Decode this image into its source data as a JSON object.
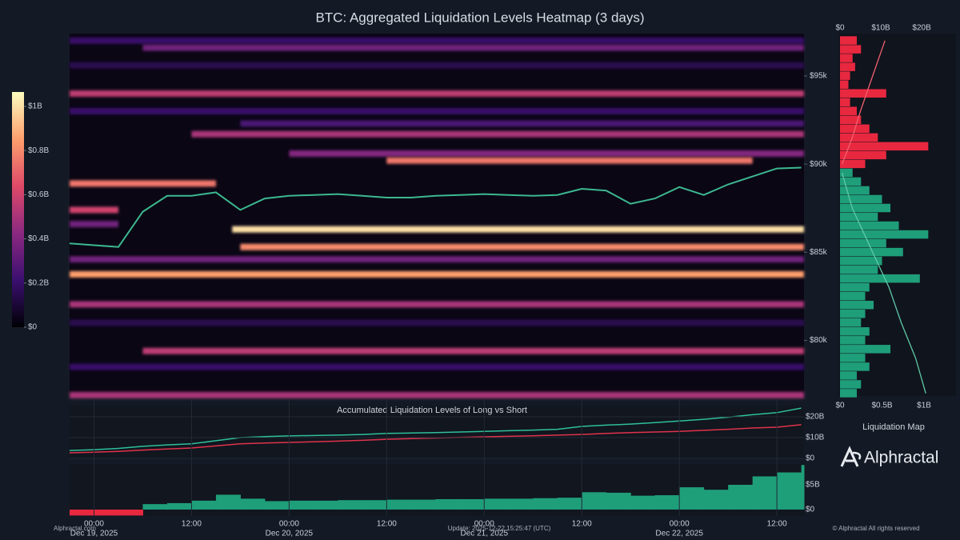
{
  "chart_data": [
    {
      "type": "heatmap",
      "title": "BTC: Aggregated Liquidation Levels Heatmap (3 days)",
      "x": [
        "2025-12-18T21:00",
        "2025-12-19T00:00",
        "2025-12-19T03:00",
        "2025-12-19T06:00",
        "2025-12-19T09:00",
        "2025-12-19T12:00",
        "2025-12-19T15:00",
        "2025-12-19T18:00",
        "2025-12-19T21:00",
        "2025-12-20T00:00",
        "2025-12-20T03:00",
        "2025-12-20T06:00",
        "2025-12-20T09:00",
        "2025-12-20T12:00",
        "2025-12-20T15:00",
        "2025-12-20T18:00",
        "2025-12-20T21:00",
        "2025-12-21T00:00",
        "2025-12-21T03:00",
        "2025-12-21T06:00",
        "2025-12-21T09:00",
        "2025-12-21T12:00",
        "2025-12-21T15:00",
        "2025-12-21T18:00",
        "2025-12-21T21:00",
        "2025-12-22T00:00",
        "2025-12-22T03:00",
        "2025-12-22T06:00",
        "2025-12-22T09:00",
        "2025-12-22T12:00",
        "2025-12-22T15:00"
      ],
      "values": [
        85500,
        85400,
        85300,
        87300,
        88200,
        88200,
        88400,
        87400,
        88050,
        88200,
        88250,
        88300,
        88200,
        88100,
        88100,
        88200,
        88250,
        88300,
        88250,
        88200,
        88250,
        88600,
        88500,
        87750,
        88050,
        88700,
        88250,
        88850,
        89300,
        89750,
        89800
      ],
      "price_color": "#3cb88f",
      "xlim": [
        "2025-12-18T21:00",
        "2025-12-22T15:20"
      ],
      "ylim": [
        76850,
        97400
      ],
      "yticks": [
        {
          "value": 95000,
          "label": "$95k"
        },
        {
          "value": 90000,
          "label": "$90k"
        },
        {
          "value": 85000,
          "label": "$85k"
        },
        {
          "value": 80000,
          "label": "$80k"
        }
      ],
      "bands": [
        {
          "price": 97000,
          "value": 0.2,
          "start": "2025-12-18T21:00",
          "end": "2025-12-22T15:20"
        },
        {
          "price": 96600,
          "value": 0.35,
          "start": "2025-12-19T06:00",
          "end": "2025-12-22T15:20"
        },
        {
          "price": 95600,
          "value": 0.15,
          "start": "2025-12-18T21:00",
          "end": "2025-12-22T15:20"
        },
        {
          "price": 94000,
          "value": 0.55,
          "start": "2025-12-18T21:00",
          "end": "2025-12-22T15:20"
        },
        {
          "price": 93000,
          "value": 0.2,
          "start": "2025-12-18T21:00",
          "end": "2025-12-22T15:20"
        },
        {
          "price": 92300,
          "value": 0.25,
          "start": "2025-12-19T18:00",
          "end": "2025-12-22T15:20"
        },
        {
          "price": 91700,
          "value": 0.5,
          "start": "2025-12-19T12:00",
          "end": "2025-12-22T15:20"
        },
        {
          "price": 90600,
          "value": 0.4,
          "start": "2025-12-20T00:00",
          "end": "2025-12-22T15:20"
        },
        {
          "price": 90200,
          "value": 0.75,
          "start": "2025-12-20T12:00",
          "end": "2025-12-22T09:00"
        },
        {
          "price": 88900,
          "value": 0.75,
          "start": "2025-12-18T21:00",
          "end": "2025-12-19T15:00"
        },
        {
          "price": 87400,
          "value": 0.6,
          "start": "2025-12-18T21:00",
          "end": "2025-12-19T03:00"
        },
        {
          "price": 86600,
          "value": 0.35,
          "start": "2025-12-18T21:00",
          "end": "2025-12-19T03:00"
        },
        {
          "price": 86300,
          "value": 1.0,
          "start": "2025-12-19T17:00",
          "end": "2025-12-22T15:20"
        },
        {
          "price": 85300,
          "value": 0.8,
          "start": "2025-12-19T18:00",
          "end": "2025-12-22T15:20"
        },
        {
          "price": 84600,
          "value": 0.35,
          "start": "2025-12-18T21:00",
          "end": "2025-12-22T15:20"
        },
        {
          "price": 83750,
          "value": 0.85,
          "start": "2025-12-18T21:00",
          "end": "2025-12-22T15:20"
        },
        {
          "price": 82050,
          "value": 0.5,
          "start": "2025-12-18T21:00",
          "end": "2025-12-22T15:20"
        },
        {
          "price": 81000,
          "value": 0.15,
          "start": "2025-12-18T21:00",
          "end": "2025-12-22T15:20"
        },
        {
          "price": 79400,
          "value": 0.55,
          "start": "2025-12-19T06:00",
          "end": "2025-12-22T15:20"
        },
        {
          "price": 78500,
          "value": 0.2,
          "start": "2025-12-18T21:00",
          "end": "2025-12-22T15:20"
        },
        {
          "price": 76900,
          "value": 0.5,
          "start": "2025-12-18T21:00",
          "end": "2025-12-22T15:20"
        }
      ],
      "colorscale": [
        "#000004",
        "#3b0f70",
        "#8c2981",
        "#de4968",
        "#fe9f6d",
        "#fcfdbf"
      ],
      "clim": [
        0,
        1.065
      ],
      "cticks": [
        {
          "value": 0,
          "label": "$0"
        },
        {
          "value": 0.2,
          "label": "$0.2B"
        },
        {
          "value": 0.4,
          "label": "$0.4B"
        },
        {
          "value": 0.6,
          "label": "$0.6B"
        },
        {
          "value": 0.8,
          "label": "$0.8B"
        },
        {
          "value": 1,
          "label": "$1B"
        }
      ]
    },
    {
      "type": "hbar",
      "title": "Liquidation Map",
      "ylim": [
        76850,
        97400
      ],
      "xlim": [
        0,
        1.38
      ],
      "xticks": [
        {
          "value": 0,
          "label": "$0"
        },
        {
          "value": 0.5,
          "label": "$0.5B"
        },
        {
          "value": 1,
          "label": "$1B"
        }
      ],
      "x2lim": [
        0,
        28.4
      ],
      "x2ticks": [
        {
          "value": 0,
          "label": "$0"
        },
        {
          "value": 10,
          "label": "$10B"
        },
        {
          "value": 20,
          "label": "$20B"
        }
      ],
      "series": [
        {
          "color": "#e8283f",
          "y": [
            97000,
            96500,
            96000,
            95500,
            95000,
            94500,
            94000,
            93500,
            93000,
            92500,
            92000,
            91500,
            91000,
            90500,
            90000
          ],
          "values": [
            0.2,
            0.25,
            0.15,
            0.18,
            0.12,
            0.1,
            0.55,
            0.12,
            0.2,
            0.25,
            0.35,
            0.45,
            1.05,
            0.55,
            0.3
          ]
        },
        {
          "color": "#1f9e7a",
          "y": [
            89500,
            89000,
            88500,
            88000,
            87500,
            87000,
            86500,
            86000,
            85500,
            85000,
            84500,
            84000,
            83500,
            83000,
            82500,
            82000,
            81500,
            81000,
            80500,
            80000,
            79500,
            79000,
            78500,
            78000,
            77500,
            77000
          ],
          "values": [
            0.15,
            0.25,
            0.35,
            0.5,
            0.6,
            0.45,
            0.7,
            1.05,
            0.55,
            0.75,
            0.5,
            0.45,
            0.95,
            0.35,
            0.3,
            0.4,
            0.3,
            0.25,
            0.35,
            0.3,
            0.6,
            0.3,
            0.35,
            0.2,
            0.25,
            0.2
          ]
        }
      ],
      "lines": [
        {
          "color": "#f0606f",
          "y": [
            90000,
            91500,
            93000,
            95000,
            97000
          ],
          "values": [
            0.5,
            3,
            5,
            8,
            11
          ]
        },
        {
          "color": "#5fc9a6",
          "y": [
            89500,
            87500,
            85000,
            83000,
            81000,
            79000,
            77000
          ],
          "values": [
            0.5,
            3,
            8,
            12,
            15,
            18.5,
            21
          ]
        }
      ]
    },
    {
      "type": "line",
      "title": "Accumulated Liquidation Levels of Long vs Short",
      "x": [
        "2025-12-18T21:00",
        "2025-12-19T00:00",
        "2025-12-19T03:00",
        "2025-12-19T06:00",
        "2025-12-19T09:00",
        "2025-12-19T12:00",
        "2025-12-19T15:00",
        "2025-12-19T18:00",
        "2025-12-19T21:00",
        "2025-12-20T00:00",
        "2025-12-20T03:00",
        "2025-12-20T06:00",
        "2025-12-20T09:00",
        "2025-12-20T12:00",
        "2025-12-20T15:00",
        "2025-12-20T18:00",
        "2025-12-20T21:00",
        "2025-12-21T00:00",
        "2025-12-21T03:00",
        "2025-12-21T06:00",
        "2025-12-21T09:00",
        "2025-12-21T12:00",
        "2025-12-21T15:00",
        "2025-12-21T18:00",
        "2025-12-21T21:00",
        "2025-12-22T00:00",
        "2025-12-22T03:00",
        "2025-12-22T06:00",
        "2025-12-22T09:00",
        "2025-12-22T12:00",
        "2025-12-22T15:00"
      ],
      "series": [
        {
          "color": "#2fbf9a",
          "values": [
            3.8,
            4.2,
            4.8,
            5.8,
            6.5,
            7,
            8.5,
            10,
            10.5,
            10.8,
            11,
            11.2,
            11.5,
            12,
            12.2,
            12.4,
            12.7,
            13,
            13.3,
            13.6,
            14,
            15.4,
            16,
            16.5,
            17.2,
            18,
            18.8,
            19.8,
            21,
            22,
            24.2
          ]
        },
        {
          "color": "#e0334b",
          "values": [
            2.7,
            3,
            3.4,
            4,
            4.5,
            5,
            6,
            7,
            7.4,
            7.7,
            8,
            8.3,
            8.7,
            9.2,
            9.5,
            9.8,
            10.1,
            10.4,
            10.6,
            10.9,
            11.2,
            11.5,
            12,
            12.4,
            12.7,
            13,
            13.5,
            14,
            14.6,
            15,
            16.2
          ]
        }
      ],
      "xlim": [
        "2025-12-18T21:00",
        "2025-12-22T15:20"
      ],
      "ylim": [
        0,
        25
      ],
      "yticks": [
        {
          "value": 0,
          "label": "$0"
        },
        {
          "value": 10,
          "label": "$10B"
        },
        {
          "value": 20,
          "label": "$20B"
        }
      ]
    },
    {
      "type": "step-bar",
      "x": [
        "2025-12-18T21:00",
        "2025-12-19T00:00",
        "2025-12-19T03:00",
        "2025-12-19T06:00",
        "2025-12-19T09:00",
        "2025-12-19T12:00",
        "2025-12-19T15:00",
        "2025-12-19T18:00",
        "2025-12-19T21:00",
        "2025-12-20T00:00",
        "2025-12-20T03:00",
        "2025-12-20T06:00",
        "2025-12-20T09:00",
        "2025-12-20T12:00",
        "2025-12-20T15:00",
        "2025-12-20T18:00",
        "2025-12-20T21:00",
        "2025-12-21T00:00",
        "2025-12-21T03:00",
        "2025-12-21T06:00",
        "2025-12-21T09:00",
        "2025-12-21T12:00",
        "2025-12-21T15:00",
        "2025-12-21T18:00",
        "2025-12-21T21:00",
        "2025-12-22T00:00",
        "2025-12-22T03:00",
        "2025-12-22T06:00",
        "2025-12-22T09:00",
        "2025-12-22T12:00",
        "2025-12-22T15:00"
      ],
      "values": [
        -1.2,
        -1.2,
        -1.2,
        1.1,
        1.3,
        1.8,
        3.0,
        2.2,
        1.7,
        1.8,
        1.8,
        1.9,
        1.9,
        2.0,
        2.0,
        2.1,
        2.1,
        2.2,
        2.2,
        2.3,
        2.4,
        3.5,
        3.4,
        2.8,
        2.9,
        4.5,
        4.0,
        5.0,
        6.7,
        7.5,
        9.0
      ],
      "positive_color": "#1f9e7a",
      "negative_color": "#e8283f",
      "xlim": [
        "2025-12-18T21:00",
        "2025-12-22T15:20"
      ],
      "ylim": [
        -1.3,
        9.2
      ],
      "yticks": [
        {
          "value": 0,
          "label": "$0"
        },
        {
          "value": 5,
          "label": "$5B"
        }
      ],
      "xticks": [
        {
          "value": "2025-12-19T00:00",
          "label": "00:00",
          "date": "Dec 19, 2025"
        },
        {
          "value": "2025-12-19T12:00",
          "label": "12:00"
        },
        {
          "value": "2025-12-20T00:00",
          "label": "00:00",
          "date": "Dec 20, 2025"
        },
        {
          "value": "2025-12-20T12:00",
          "label": "12:00"
        },
        {
          "value": "2025-12-21T00:00",
          "label": "00:00",
          "date": "Dec 21, 2025"
        },
        {
          "value": "2025-12-21T12:00",
          "label": "12:00"
        },
        {
          "value": "2025-12-22T00:00",
          "label": "00:00",
          "date": "Dec 22, 2025"
        },
        {
          "value": "2025-12-22T12:00",
          "label": "12:00"
        }
      ]
    }
  ],
  "footer": {
    "site": "Alphractal.com",
    "update": "Update: 2025-12-22 15:25:47 (UTC)",
    "copyright": "© Alphractal All rights reserved",
    "brand": "Alphractal"
  }
}
